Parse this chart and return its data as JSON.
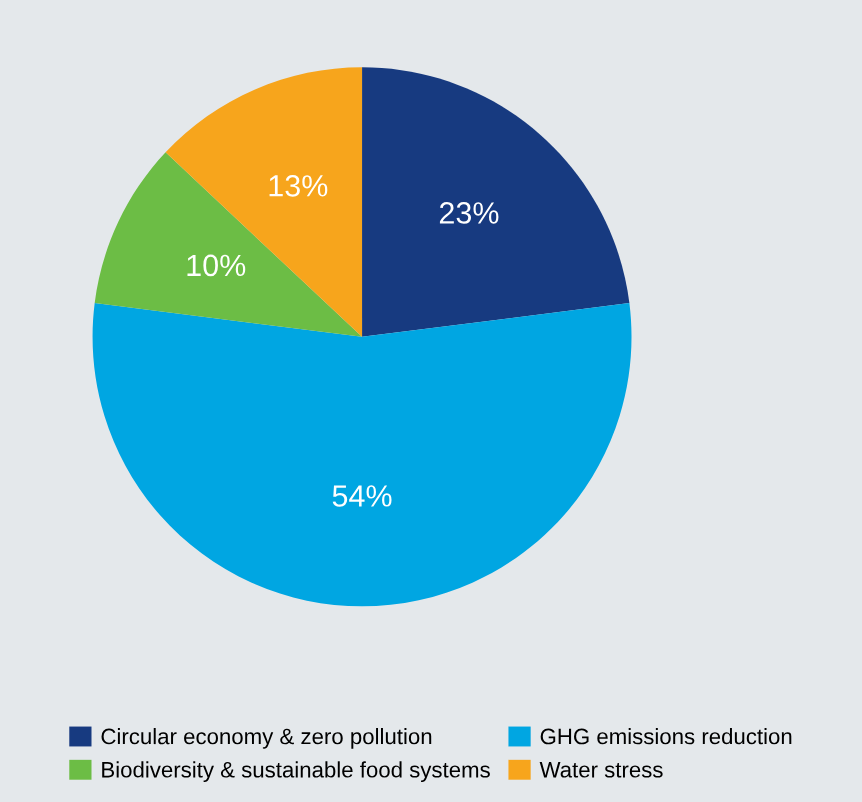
{
  "chart_data": {
    "type": "pie",
    "categories": [
      "Circular economy & zero pollution",
      "GHG emissions reduction",
      "Biodiversity & sustainable food systems",
      "Water stress"
    ],
    "values": [
      23,
      54,
      10,
      13
    ],
    "colors": [
      "#173a80",
      "#00a6e2",
      "#6cbd45",
      "#f7a51c"
    ],
    "value_labels": [
      "23%",
      "54%",
      "10%",
      "13%"
    ],
    "legend": "bottom"
  }
}
